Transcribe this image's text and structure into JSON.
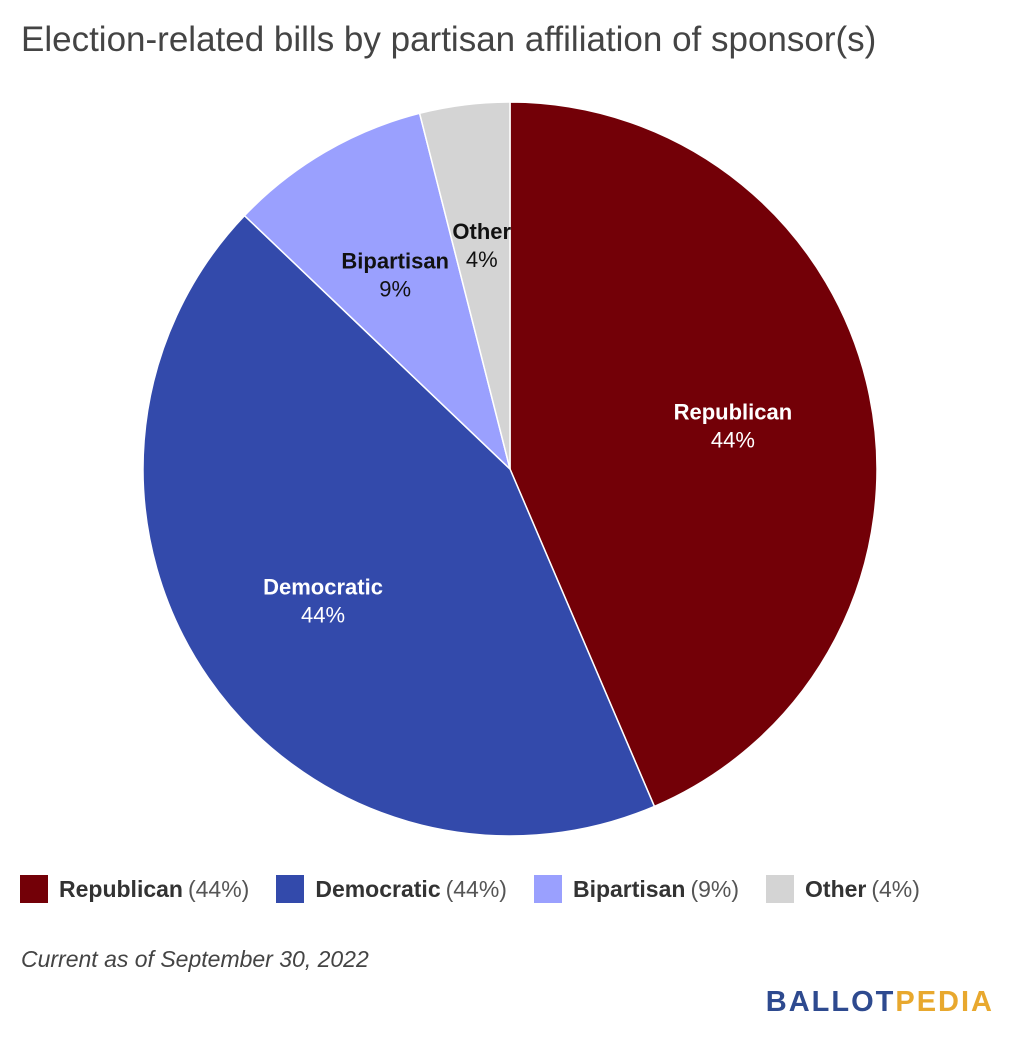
{
  "chart_data": {
    "type": "pie",
    "title": "Election-related bills by partisan affiliation of sponsor(s)",
    "slices": [
      {
        "name": "Republican",
        "value": 44,
        "label": "44%",
        "color": "#730007"
      },
      {
        "name": "Democratic",
        "value": 44,
        "label": "44%",
        "color": "#334aab"
      },
      {
        "name": "Bipartisan",
        "value": 9,
        "label": "9%",
        "color": "#9aa0fe"
      },
      {
        "name": "Other",
        "value": 4,
        "label": "4%",
        "color": "#d4d4d4"
      }
    ],
    "legend": {
      "placement": "bottom",
      "items": [
        {
          "name": "Republican",
          "pct": "(44%)"
        },
        {
          "name": "Democratic",
          "pct": "(44%)"
        },
        {
          "name": "Bipartisan",
          "pct": "(9%)"
        },
        {
          "name": "Other",
          "pct": "(4%)"
        }
      ]
    }
  },
  "footnote": "Current as of September 30, 2022",
  "logo": {
    "part1": "BALLOT",
    "part2": "PEDIA"
  }
}
